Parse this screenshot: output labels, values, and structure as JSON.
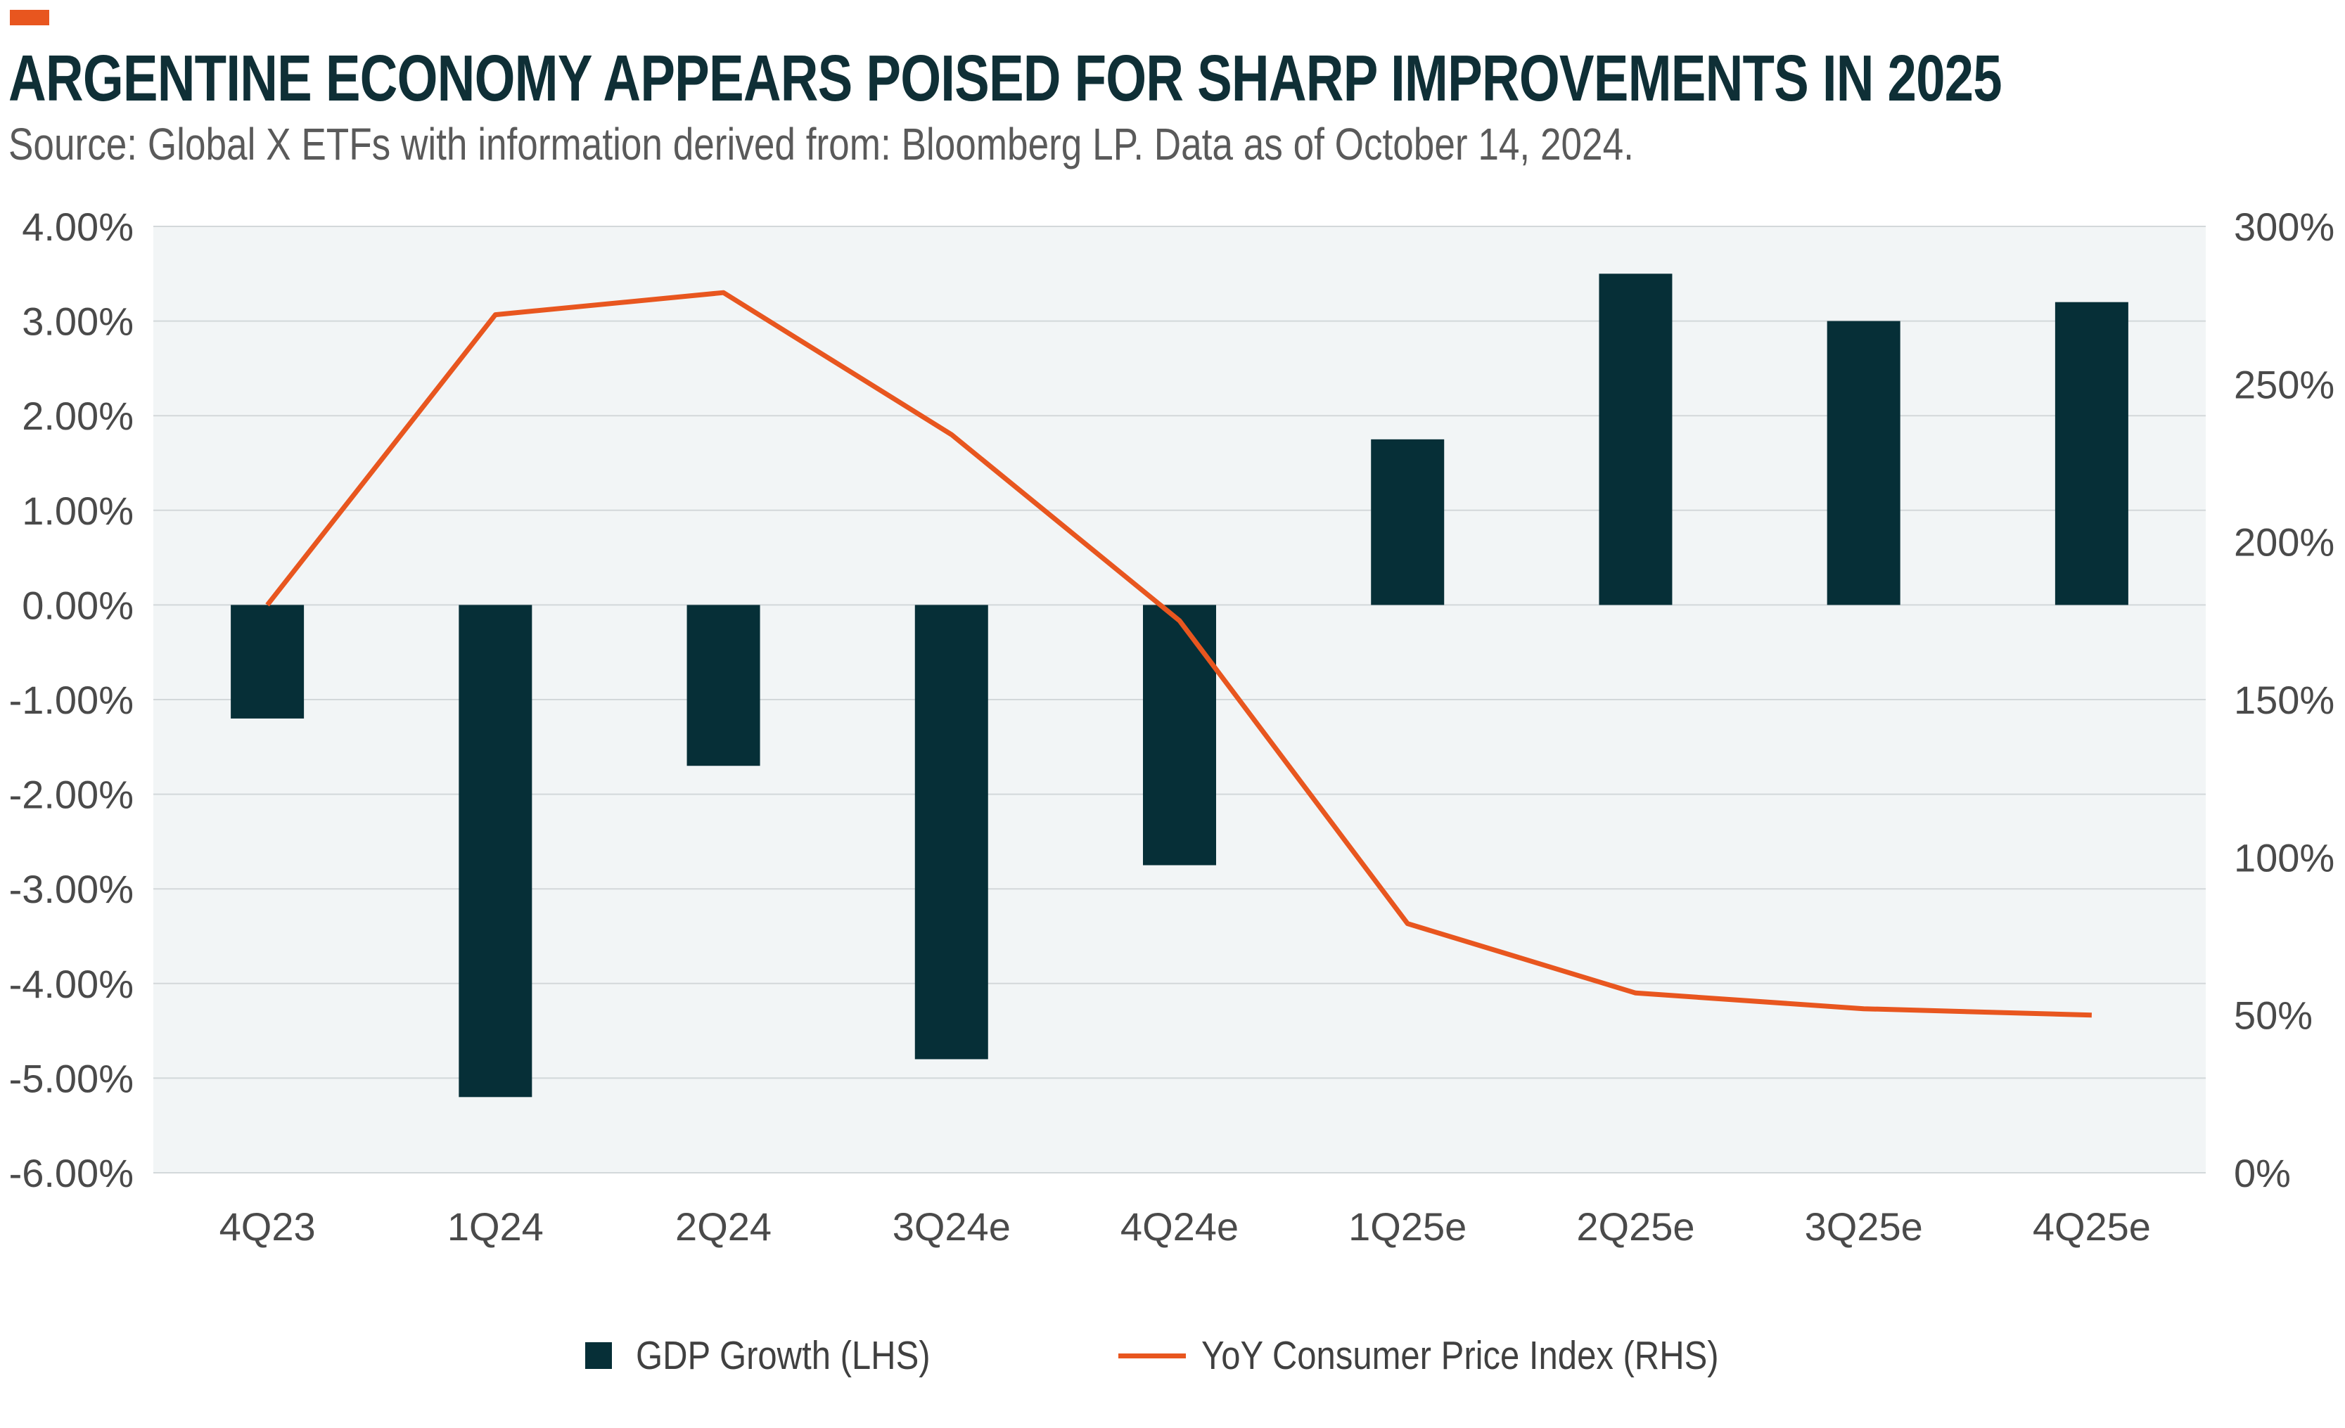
{
  "title": "ARGENTINE ECONOMY APPEARS POISED FOR SHARP IMPROVEMENTS IN 2025",
  "subtitle": "Source: Global X ETFs with information derived from: Bloomberg LP. Data as of October 14, 2024.",
  "colors": {
    "accent": "#e8561f",
    "bar": "#062f37",
    "line": "#e8561f",
    "plot_background": "#f2f5f6",
    "title": "#0f2f36"
  },
  "chart_data": {
    "type": "bar",
    "categories": [
      "4Q23",
      "1Q24",
      "2Q24",
      "3Q24e",
      "4Q24e",
      "1Q25e",
      "2Q25e",
      "3Q25e",
      "4Q25e"
    ],
    "series": [
      {
        "name": "GDP Growth (LHS)",
        "type": "bar",
        "axis": "left",
        "values": [
          -1.2,
          -5.2,
          -1.7,
          -4.8,
          -2.75,
          1.75,
          3.5,
          3.0,
          3.2
        ]
      },
      {
        "name": "YoY Consumer Price Index (RHS)",
        "type": "line",
        "axis": "right",
        "values": [
          180,
          272,
          279,
          234,
          175,
          79,
          57,
          52,
          50
        ]
      }
    ],
    "y_left": {
      "ylim": [
        -6,
        4
      ],
      "ticks": [
        "4.00%",
        "3.00%",
        "2.00%",
        "1.00%",
        "0.00%",
        "-1.00%",
        "-2.00%",
        "-3.00%",
        "-4.00%",
        "-5.00%",
        "-6.00%"
      ]
    },
    "y_right": {
      "ylim": [
        0,
        300
      ],
      "ticks": [
        "300%",
        "250%",
        "200%",
        "150%",
        "100%",
        "50%",
        "0%"
      ]
    },
    "grid": true,
    "legend_position": "bottom"
  }
}
